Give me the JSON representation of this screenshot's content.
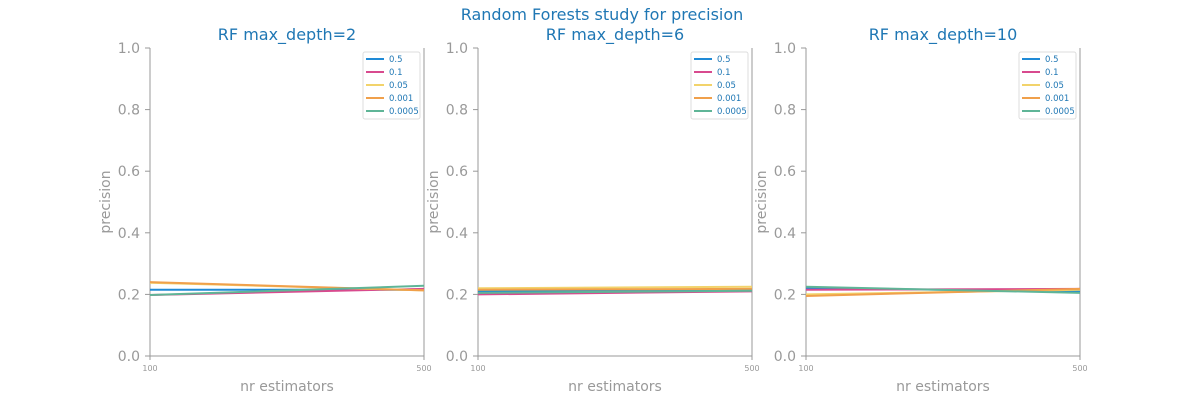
{
  "suptitle": "Random Forests study for precision",
  "colors": {
    "title": "#1f77b4",
    "axis_text": "#999999",
    "spine": "#999999",
    "legend_text": "#1f77b4",
    "legend_border": "#dddddd"
  },
  "chart_data": [
    {
      "type": "line",
      "title": "RF max_depth=2",
      "xlabel": "nr estimators",
      "ylabel": "precision",
      "x": [
        100,
        500
      ],
      "xticks": [
        "100",
        "500"
      ],
      "ylim": [
        0.0,
        1.0
      ],
      "yticks": [
        "0.0",
        "0.2",
        "0.4",
        "0.6",
        "0.8",
        "1.0"
      ],
      "legend_position": "top-right",
      "grid": false,
      "series": [
        {
          "name": "0.5",
          "color": "#1f8ad6",
          "values": [
            0.215,
            0.215
          ]
        },
        {
          "name": "0.1",
          "color": "#d84a8e",
          "values": [
            0.198,
            0.218
          ]
        },
        {
          "name": "0.05",
          "color": "#f2d36b",
          "values": [
            0.238,
            0.213
          ]
        },
        {
          "name": "0.001",
          "color": "#f0a04b",
          "values": [
            0.24,
            0.213
          ]
        },
        {
          "name": "0.0005",
          "color": "#5fb597",
          "values": [
            0.198,
            0.228
          ]
        }
      ]
    },
    {
      "type": "line",
      "title": "RF max_depth=6",
      "xlabel": "nr estimators",
      "ylabel": "precision",
      "x": [
        100,
        500
      ],
      "xticks": [
        "100",
        "500"
      ],
      "ylim": [
        0.0,
        1.0
      ],
      "yticks": [
        "0.0",
        "0.2",
        "0.4",
        "0.6",
        "0.8",
        "1.0"
      ],
      "legend_position": "top-right",
      "grid": false,
      "series": [
        {
          "name": "0.5",
          "color": "#1f8ad6",
          "values": [
            0.21,
            0.215
          ]
        },
        {
          "name": "0.1",
          "color": "#d84a8e",
          "values": [
            0.2,
            0.21
          ]
        },
        {
          "name": "0.05",
          "color": "#f2d36b",
          "values": [
            0.22,
            0.225
          ]
        },
        {
          "name": "0.001",
          "color": "#f0a04b",
          "values": [
            0.215,
            0.218
          ]
        },
        {
          "name": "0.0005",
          "color": "#5fb597",
          "values": [
            0.205,
            0.212
          ]
        }
      ]
    },
    {
      "type": "line",
      "title": "RF max_depth=10",
      "xlabel": "nr estimators",
      "ylabel": "precision",
      "x": [
        100,
        500
      ],
      "xticks": [
        "100",
        "500"
      ],
      "ylim": [
        0.0,
        1.0
      ],
      "yticks": [
        "0.0",
        "0.2",
        "0.4",
        "0.6",
        "0.8",
        "1.0"
      ],
      "legend_position": "top-right",
      "grid": false,
      "series": [
        {
          "name": "0.5",
          "color": "#1f8ad6",
          "values": [
            0.22,
            0.21
          ]
        },
        {
          "name": "0.1",
          "color": "#d84a8e",
          "values": [
            0.215,
            0.218
          ]
        },
        {
          "name": "0.05",
          "color": "#f2d36b",
          "values": [
            0.2,
            0.215
          ]
        },
        {
          "name": "0.001",
          "color": "#f0a04b",
          "values": [
            0.195,
            0.218
          ]
        },
        {
          "name": "0.0005",
          "color": "#5fb597",
          "values": [
            0.225,
            0.205
          ]
        }
      ]
    }
  ]
}
